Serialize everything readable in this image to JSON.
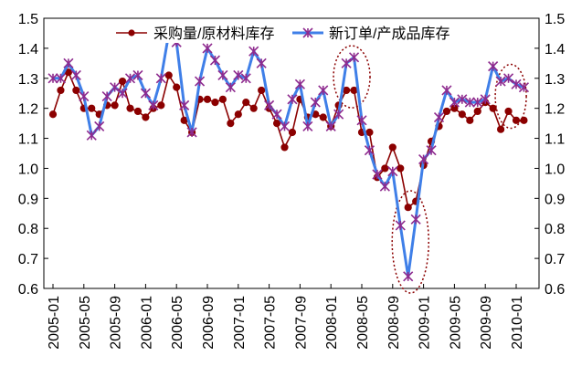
{
  "chart_data": {
    "type": "line",
    "title": "",
    "xlabel": "",
    "ylabel": "",
    "ylim": [
      0.6,
      1.5
    ],
    "yticks": [
      "0.6",
      "0.7",
      "0.8",
      "0.9",
      "1.0",
      "1.1",
      "1.2",
      "1.3",
      "1.4",
      "1.5"
    ],
    "grid": false,
    "legend_position": "top",
    "x_tick_labels": [
      "2005-01",
      "2005-05",
      "2005-09",
      "2006-01",
      "2006-05",
      "2006-09",
      "2007-01",
      "2007-05",
      "2007-09",
      "2008-01",
      "2008-05",
      "2008-09",
      "2009-01",
      "2009-05",
      "2009-09",
      "2010-01"
    ],
    "x": [
      "2005-01",
      "2005-02",
      "2005-03",
      "2005-04",
      "2005-05",
      "2005-06",
      "2005-07",
      "2005-08",
      "2005-09",
      "2005-10",
      "2005-11",
      "2005-12",
      "2006-01",
      "2006-02",
      "2006-03",
      "2006-04",
      "2006-05",
      "2006-06",
      "2006-07",
      "2006-08",
      "2006-09",
      "2006-10",
      "2006-11",
      "2006-12",
      "2007-01",
      "2007-02",
      "2007-03",
      "2007-04",
      "2007-05",
      "2007-06",
      "2007-07",
      "2007-08",
      "2007-09",
      "2007-10",
      "2007-11",
      "2007-12",
      "2008-01",
      "2008-02",
      "2008-03",
      "2008-04",
      "2008-05",
      "2008-06",
      "2008-07",
      "2008-08",
      "2008-09",
      "2008-10",
      "2008-11",
      "2008-12",
      "2009-01",
      "2009-02",
      "2009-03",
      "2009-04",
      "2009-05",
      "2009-06",
      "2009-07",
      "2009-08",
      "2009-09",
      "2009-10",
      "2009-11",
      "2009-12",
      "2010-01",
      "2010-02"
    ],
    "series": [
      {
        "name": "采购量/原材料库存",
        "color": "#8b0000",
        "marker": "circle",
        "values": [
          1.18,
          1.26,
          1.32,
          1.26,
          1.2,
          1.2,
          1.18,
          1.21,
          1.21,
          1.29,
          1.2,
          1.19,
          1.17,
          1.2,
          1.21,
          1.31,
          1.27,
          1.16,
          1.12,
          1.23,
          1.23,
          1.22,
          1.23,
          1.15,
          1.18,
          1.22,
          1.2,
          1.26,
          1.2,
          1.15,
          1.07,
          1.12,
          1.23,
          1.17,
          1.18,
          1.17,
          1.14,
          1.21,
          1.26,
          1.26,
          1.12,
          1.12,
          0.97,
          1.0,
          1.07,
          1.0,
          0.87,
          0.89,
          1.01,
          1.09,
          1.14,
          1.19,
          1.2,
          1.18,
          1.16,
          1.19,
          1.22,
          1.2,
          1.13,
          1.19,
          1.16,
          1.16
        ]
      },
      {
        "name": "新订单/产成品库存",
        "color": "#3f7fe8",
        "marker": "asterisk",
        "values": [
          1.3,
          1.3,
          1.35,
          1.31,
          1.24,
          1.11,
          1.14,
          1.24,
          1.27,
          1.25,
          1.3,
          1.31,
          1.25,
          1.21,
          1.3,
          1.45,
          1.42,
          1.21,
          1.12,
          1.29,
          1.4,
          1.36,
          1.31,
          1.27,
          1.31,
          1.3,
          1.39,
          1.35,
          1.21,
          1.18,
          1.14,
          1.23,
          1.28,
          1.14,
          1.22,
          1.26,
          1.14,
          1.18,
          1.35,
          1.37,
          1.16,
          1.06,
          0.98,
          0.94,
          0.99,
          0.81,
          0.64,
          0.83,
          1.03,
          1.06,
          1.17,
          1.26,
          1.22,
          1.23,
          1.22,
          1.22,
          1.23,
          1.34,
          1.29,
          1.3,
          1.28,
          1.27
        ]
      }
    ]
  }
}
